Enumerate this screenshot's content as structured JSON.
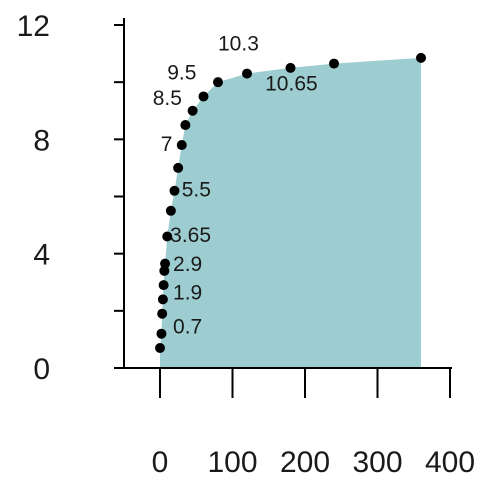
{
  "chart_data": {
    "type": "area",
    "title": "",
    "xlabel": "",
    "ylabel": "",
    "xlim": [
      -40,
      400
    ],
    "ylim": [
      0,
      12
    ],
    "grid": false,
    "legend": "none",
    "x_ticks": [
      0,
      100,
      200,
      300,
      400
    ],
    "x_tick_labels": [
      "0",
      "100",
      "200",
      "300",
      "400"
    ],
    "y_ticks": [
      0,
      4,
      8,
      12
    ],
    "y_tick_labels": [
      "0",
      "4",
      "8",
      "12"
    ],
    "colors": {
      "area_fill": "#9dcdd0",
      "marker": "#000000",
      "axis": "#000000",
      "text": "#1a1a1a"
    },
    "series": [
      {
        "x": [
          0,
          2,
          3,
          4,
          5,
          6,
          7,
          10,
          15,
          20,
          25,
          30,
          35,
          45,
          60,
          80,
          120,
          180,
          240,
          360
        ],
        "y": [
          0.7,
          1.2,
          1.9,
          2.4,
          2.9,
          3.4,
          3.65,
          4.6,
          5.5,
          6.2,
          7.0,
          7.8,
          8.5,
          9.0,
          9.5,
          10.0,
          10.3,
          10.5,
          10.65,
          10.85
        ]
      }
    ],
    "annotations": [
      {
        "text": "0.7",
        "x": 18,
        "y": 1.2
      },
      {
        "text": "1.9",
        "x": 18,
        "y": 2.4
      },
      {
        "text": "2.9",
        "x": 18,
        "y": 3.4
      },
      {
        "text": "3.65",
        "x": 14,
        "y": 4.4
      },
      {
        "text": "5.5",
        "x": 30,
        "y": 6.0
      },
      {
        "text": "7",
        "x": 1,
        "y": 7.6
      },
      {
        "text": "8.5",
        "x": -10,
        "y": 9.2
      },
      {
        "text": "9.5",
        "x": 10,
        "y": 10.1
      },
      {
        "text": "10.3",
        "x": 80,
        "y": 11.1
      },
      {
        "text": "10.65",
        "x": 145,
        "y": 9.7
      }
    ]
  }
}
